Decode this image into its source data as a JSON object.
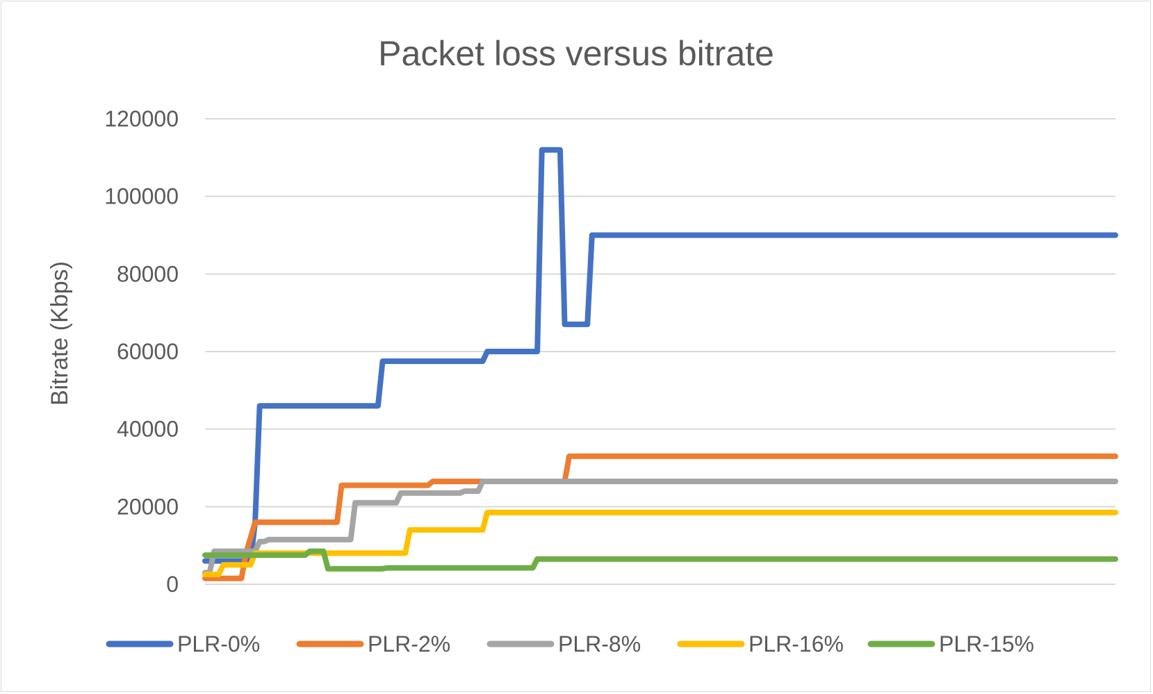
{
  "chart_data": {
    "type": "line",
    "title": "Packet loss versus bitrate",
    "ylabel": "Bitrate (Kbps)",
    "xlabel": "",
    "ylim": [
      0,
      120000
    ],
    "yticks": [
      0,
      20000,
      40000,
      60000,
      80000,
      100000,
      120000
    ],
    "grid": true,
    "legend_position": "bottom",
    "x_range": [
      0,
      200
    ],
    "series": [
      {
        "name": "PLR-0%",
        "color": "#4472C4",
        "points": [
          [
            0,
            6000
          ],
          [
            10,
            6000
          ],
          [
            11,
            16000
          ],
          [
            12,
            46000
          ],
          [
            38,
            46000
          ],
          [
            39,
            57500
          ],
          [
            61,
            57500
          ],
          [
            62,
            60000
          ],
          [
            73,
            60000
          ],
          [
            74,
            112000
          ],
          [
            78,
            112000
          ],
          [
            79,
            67000
          ],
          [
            84,
            67000
          ],
          [
            85,
            90000
          ],
          [
            200,
            90000
          ]
        ]
      },
      {
        "name": "PLR-2%",
        "color": "#ED7D31",
        "points": [
          [
            0,
            1500
          ],
          [
            8,
            1500
          ],
          [
            9,
            8000
          ],
          [
            11,
            16000
          ],
          [
            29,
            16000
          ],
          [
            30,
            25500
          ],
          [
            49,
            25500
          ],
          [
            50,
            26500
          ],
          [
            79,
            26500
          ],
          [
            80,
            33000
          ],
          [
            200,
            33000
          ]
        ]
      },
      {
        "name": "PLR-8%",
        "color": "#A5A5A5",
        "points": [
          [
            0,
            3000
          ],
          [
            1,
            3000
          ],
          [
            2,
            8500
          ],
          [
            11,
            8500
          ],
          [
            12,
            11000
          ],
          [
            13,
            11000
          ],
          [
            14,
            11500
          ],
          [
            32,
            11500
          ],
          [
            33,
            21000
          ],
          [
            42,
            21000
          ],
          [
            43,
            23500
          ],
          [
            56,
            23500
          ],
          [
            57,
            24000
          ],
          [
            60,
            24000
          ],
          [
            61,
            26500
          ],
          [
            200,
            26500
          ]
        ]
      },
      {
        "name": "PLR-16%",
        "color": "#FFC000",
        "points": [
          [
            0,
            2500
          ],
          [
            3,
            2500
          ],
          [
            4,
            5000
          ],
          [
            10,
            5000
          ],
          [
            11,
            8000
          ],
          [
            44,
            8000
          ],
          [
            45,
            14000
          ],
          [
            61,
            14000
          ],
          [
            62,
            18500
          ],
          [
            200,
            18500
          ]
        ]
      },
      {
        "name": "PLR-15%",
        "color": "#70AD47",
        "points": [
          [
            0,
            7500
          ],
          [
            22,
            7500
          ],
          [
            23,
            8500
          ],
          [
            26,
            8500
          ],
          [
            27,
            4000
          ],
          [
            39,
            4000
          ],
          [
            40,
            4200
          ],
          [
            72,
            4200
          ],
          [
            73,
            6500
          ],
          [
            200,
            6500
          ]
        ]
      }
    ]
  }
}
